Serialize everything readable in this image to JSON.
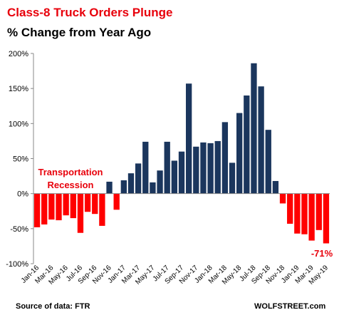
{
  "chart_data": {
    "type": "bar",
    "title": "Class-8 Truck Orders Plunge",
    "subtitle": "% Change from Year Ago",
    "ylim": [
      -100,
      200
    ],
    "yticks": [
      -100,
      -50,
      0,
      50,
      100,
      150,
      200
    ],
    "ytick_labels": [
      "-100%",
      "-50%",
      "0%",
      "50%",
      "100%",
      "150%",
      "200%"
    ],
    "categories": [
      "Jan-16",
      "Feb-16",
      "Mar-16",
      "Apr-16",
      "May-16",
      "Jun-16",
      "Jul-16",
      "Aug-16",
      "Sep-16",
      "Oct-16",
      "Nov-16",
      "Dec-16",
      "Jan-17",
      "Feb-17",
      "Mar-17",
      "Apr-17",
      "May-17",
      "Jun-17",
      "Jul-17",
      "Aug-17",
      "Sep-17",
      "Oct-17",
      "Nov-17",
      "Dec-17",
      "Jan-18",
      "Feb-18",
      "Mar-18",
      "Apr-18",
      "May-18",
      "Jun-18",
      "Jul-18",
      "Aug-18",
      "Sep-18",
      "Oct-18",
      "Nov-18",
      "Dec-18",
      "Jan-19",
      "Feb-19",
      "Mar-19",
      "Apr-19",
      "May-19"
    ],
    "xtick_labels_shown": [
      "Jan-16",
      "Mar-16",
      "May-16",
      "Jul-16",
      "Sep-16",
      "Nov-16",
      "Jan-17",
      "Mar-17",
      "May-17",
      "Jul-17",
      "Sep-17",
      "Nov-17",
      "Jan-18",
      "Mar-18",
      "May-18",
      "Jul-18",
      "Sep-18",
      "Nov-18",
      "Jan-19",
      "Mar-19",
      "May-19"
    ],
    "values": [
      -48,
      -44,
      -37,
      -38,
      -31,
      -35,
      -56,
      -26,
      -29,
      -46,
      17,
      -23,
      19,
      29,
      43,
      74,
      16,
      33,
      74,
      47,
      60,
      157,
      67,
      73,
      72,
      75,
      102,
      44,
      115,
      140,
      186,
      153,
      91,
      18,
      -14,
      -43,
      -57,
      -58,
      -67,
      -52,
      -71
    ],
    "colors": {
      "positive": "#1b365d",
      "negative": "#ff0000"
    },
    "annotation": "Transportation Recession",
    "last_value_label": "-71%",
    "grid": false
  },
  "footer": {
    "source": "Source of data: FTR",
    "brand": "WOLFSTREET.com"
  }
}
